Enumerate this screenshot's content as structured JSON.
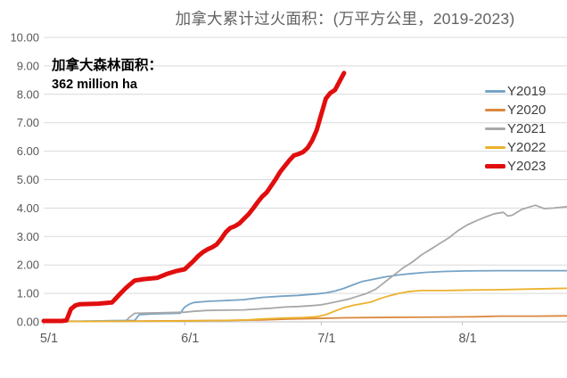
{
  "title": "加拿大累计过火面积：(万平方公里，2019-2023)",
  "annotation": {
    "line1": "加拿大森林面积：",
    "line2": "362 million ha"
  },
  "colors": {
    "title_text": "#636363",
    "axis_text": "#595959",
    "axis_line": "#BFBFBF",
    "gridline": "#D9D9D9",
    "legend_text": "#404040"
  },
  "chart_data": {
    "type": "line",
    "title": "加拿大累计过火面积：(万平方公里，2019-2023)",
    "note_annotation": "加拿大森林面积：362 million ha",
    "x_axis": {
      "unit": "date (month/day), day offset from May 1",
      "tick_labels": [
        "5/1",
        "6/1",
        "7/1",
        "8/1"
      ],
      "tick_days": [
        0,
        31,
        61,
        92
      ],
      "domain_days": [
        0,
        115
      ]
    },
    "y_axis": {
      "min": 0,
      "max": 10,
      "step": 1,
      "tick_labels": [
        "0.00",
        "1.00",
        "2.00",
        "3.00",
        "4.00",
        "5.00",
        "6.00",
        "7.00",
        "8.00",
        "9.00",
        "10.00"
      ]
    },
    "grid": "horizontal-only",
    "legend_position": "right",
    "series": [
      {
        "name": "Y2019",
        "color": "#76A3C6",
        "width": 1.8,
        "points": [
          [
            0,
            0.02
          ],
          [
            8,
            0.02
          ],
          [
            15,
            0.04
          ],
          [
            20,
            0.05
          ],
          [
            21,
            0.25
          ],
          [
            24,
            0.28
          ],
          [
            30,
            0.3
          ],
          [
            31,
            0.52
          ],
          [
            32,
            0.62
          ],
          [
            33,
            0.68
          ],
          [
            36,
            0.72
          ],
          [
            40,
            0.75
          ],
          [
            44,
            0.78
          ],
          [
            46,
            0.82
          ],
          [
            48,
            0.86
          ],
          [
            52,
            0.9
          ],
          [
            56,
            0.93
          ],
          [
            60,
            0.98
          ],
          [
            62,
            1.02
          ],
          [
            64,
            1.08
          ],
          [
            66,
            1.18
          ],
          [
            68,
            1.3
          ],
          [
            70,
            1.42
          ],
          [
            72,
            1.48
          ],
          [
            75,
            1.58
          ],
          [
            78,
            1.65
          ],
          [
            81,
            1.7
          ],
          [
            84,
            1.74
          ],
          [
            88,
            1.77
          ],
          [
            93,
            1.79
          ],
          [
            100,
            1.8
          ],
          [
            108,
            1.8
          ],
          [
            115,
            1.8
          ]
        ]
      },
      {
        "name": "Y2020",
        "color": "#D9883D",
        "width": 1.8,
        "points": [
          [
            0,
            0.01
          ],
          [
            12,
            0.02
          ],
          [
            24,
            0.03
          ],
          [
            34,
            0.04
          ],
          [
            42,
            0.05
          ],
          [
            48,
            0.07
          ],
          [
            54,
            0.1
          ],
          [
            60,
            0.12
          ],
          [
            66,
            0.14
          ],
          [
            72,
            0.15
          ],
          [
            80,
            0.16
          ],
          [
            88,
            0.17
          ],
          [
            95,
            0.18
          ],
          [
            100,
            0.2
          ],
          [
            108,
            0.2
          ],
          [
            115,
            0.21
          ]
        ]
      },
      {
        "name": "Y2021",
        "color": "#A8A8A8",
        "width": 1.8,
        "points": [
          [
            0,
            0.02
          ],
          [
            18,
            0.03
          ],
          [
            19,
            0.18
          ],
          [
            20,
            0.3
          ],
          [
            26,
            0.32
          ],
          [
            31,
            0.34
          ],
          [
            33,
            0.37
          ],
          [
            36,
            0.4
          ],
          [
            44,
            0.42
          ],
          [
            47,
            0.45
          ],
          [
            50,
            0.48
          ],
          [
            53,
            0.52
          ],
          [
            56,
            0.54
          ],
          [
            59,
            0.57
          ],
          [
            61,
            0.6
          ],
          [
            63,
            0.66
          ],
          [
            65,
            0.73
          ],
          [
            67,
            0.8
          ],
          [
            69,
            0.9
          ],
          [
            71,
            1.0
          ],
          [
            73,
            1.15
          ],
          [
            75,
            1.4
          ],
          [
            77,
            1.65
          ],
          [
            79,
            1.9
          ],
          [
            81,
            2.1
          ],
          [
            83,
            2.35
          ],
          [
            85,
            2.55
          ],
          [
            87,
            2.75
          ],
          [
            89,
            2.95
          ],
          [
            91,
            3.2
          ],
          [
            93,
            3.4
          ],
          [
            95,
            3.55
          ],
          [
            97,
            3.68
          ],
          [
            99,
            3.8
          ],
          [
            101,
            3.85
          ],
          [
            102,
            3.72
          ],
          [
            103,
            3.75
          ],
          [
            105,
            3.95
          ],
          [
            107,
            4.05
          ],
          [
            108,
            4.1
          ],
          [
            110,
            3.98
          ],
          [
            112,
            4.0
          ],
          [
            115,
            4.05
          ]
        ]
      },
      {
        "name": "Y2022",
        "color": "#ECB22D",
        "width": 1.8,
        "points": [
          [
            0,
            0.01
          ],
          [
            20,
            0.02
          ],
          [
            32,
            0.03
          ],
          [
            40,
            0.05
          ],
          [
            45,
            0.07
          ],
          [
            48,
            0.1
          ],
          [
            52,
            0.13
          ],
          [
            57,
            0.15
          ],
          [
            60,
            0.18
          ],
          [
            62,
            0.25
          ],
          [
            64,
            0.38
          ],
          [
            66,
            0.5
          ],
          [
            68,
            0.58
          ],
          [
            70,
            0.64
          ],
          [
            72,
            0.7
          ],
          [
            74,
            0.82
          ],
          [
            76,
            0.92
          ],
          [
            78,
            1.0
          ],
          [
            80,
            1.06
          ],
          [
            83,
            1.1
          ],
          [
            88,
            1.1
          ],
          [
            94,
            1.12
          ],
          [
            100,
            1.13
          ],
          [
            106,
            1.15
          ],
          [
            112,
            1.17
          ],
          [
            115,
            1.18
          ]
        ]
      },
      {
        "name": "Y2023",
        "color": "#E10E0E",
        "width": 5,
        "points": [
          [
            0,
            0.03
          ],
          [
            4,
            0.03
          ],
          [
            5,
            0.05
          ],
          [
            6,
            0.45
          ],
          [
            7,
            0.58
          ],
          [
            8,
            0.62
          ],
          [
            12,
            0.64
          ],
          [
            15,
            0.68
          ],
          [
            16,
            0.85
          ],
          [
            17,
            1.02
          ],
          [
            18,
            1.18
          ],
          [
            19,
            1.32
          ],
          [
            20,
            1.45
          ],
          [
            22,
            1.5
          ],
          [
            25,
            1.55
          ],
          [
            27,
            1.68
          ],
          [
            29,
            1.78
          ],
          [
            31,
            1.85
          ],
          [
            32,
            2.0
          ],
          [
            33,
            2.15
          ],
          [
            34,
            2.32
          ],
          [
            35,
            2.45
          ],
          [
            36,
            2.55
          ],
          [
            37,
            2.62
          ],
          [
            38,
            2.72
          ],
          [
            39,
            2.92
          ],
          [
            40,
            3.15
          ],
          [
            41,
            3.3
          ],
          [
            42,
            3.36
          ],
          [
            43,
            3.46
          ],
          [
            44,
            3.62
          ],
          [
            45,
            3.78
          ],
          [
            46,
            3.98
          ],
          [
            47,
            4.2
          ],
          [
            48,
            4.4
          ],
          [
            49,
            4.55
          ],
          [
            50,
            4.78
          ],
          [
            51,
            5.02
          ],
          [
            52,
            5.28
          ],
          [
            53,
            5.48
          ],
          [
            54,
            5.68
          ],
          [
            55,
            5.85
          ],
          [
            56,
            5.9
          ],
          [
            57,
            5.97
          ],
          [
            58,
            6.12
          ],
          [
            59,
            6.38
          ],
          [
            60,
            6.75
          ],
          [
            61,
            7.3
          ],
          [
            62,
            7.85
          ],
          [
            63,
            8.05
          ],
          [
            64,
            8.15
          ],
          [
            65,
            8.45
          ],
          [
            66,
            8.75
          ]
        ]
      }
    ]
  }
}
